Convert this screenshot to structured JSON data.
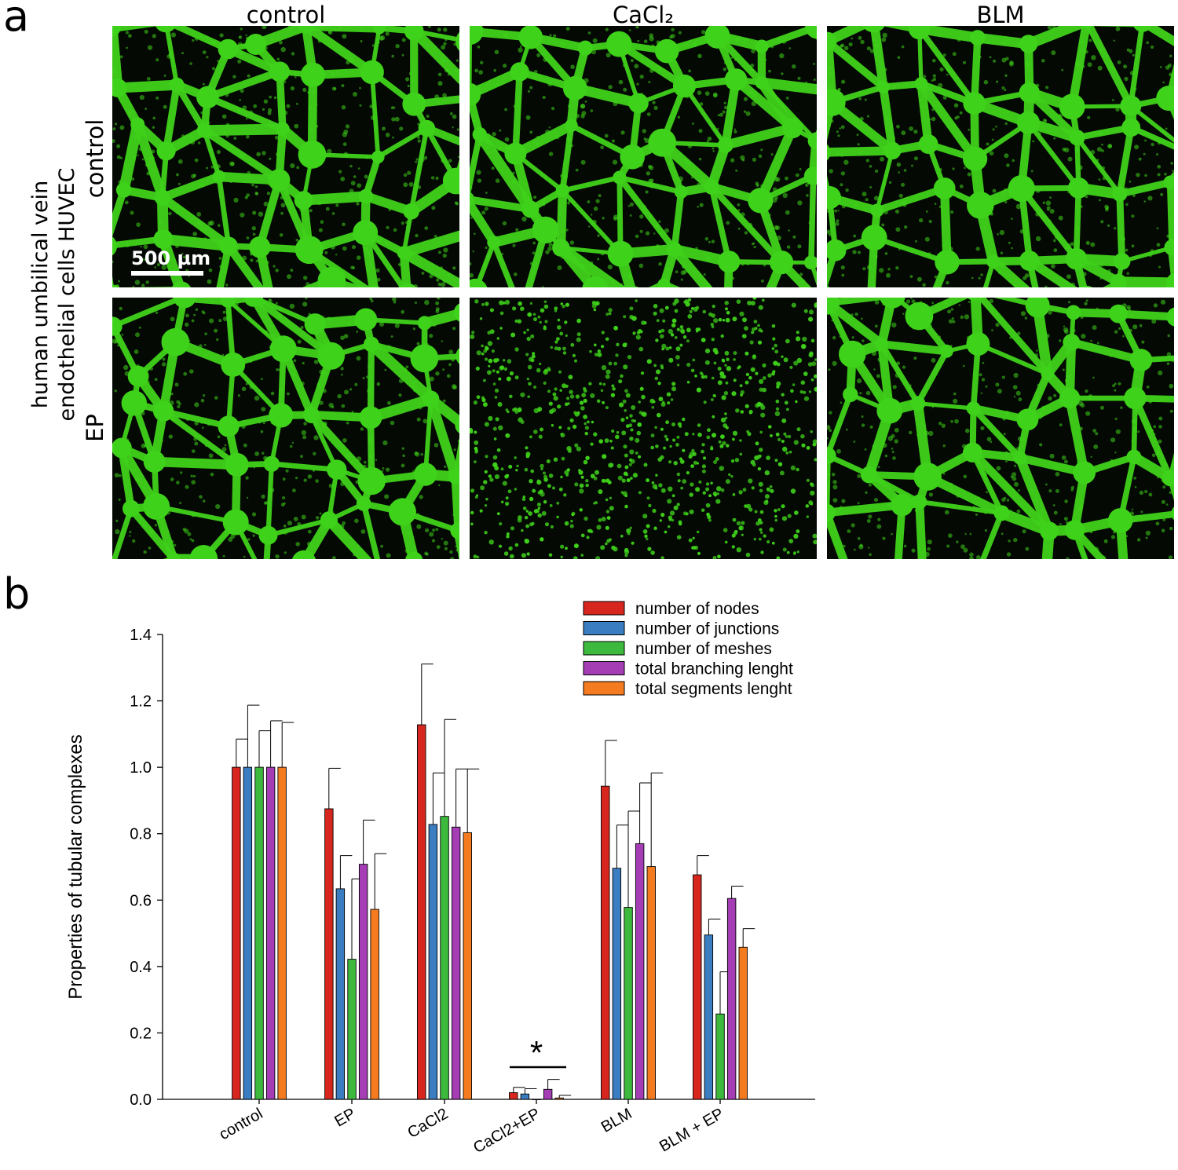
{
  "panel_a": {
    "letter": "a",
    "column_titles": [
      "control",
      "CaCl₂",
      "BLM"
    ],
    "row_labels": [
      "control",
      "EP"
    ],
    "side_label_lines": [
      "human umbilical vein",
      "endothelial cells HUVEC"
    ],
    "scale_bar": "500 µm",
    "colors": {
      "cells": "#3fd21a",
      "background": "#040904"
    }
  },
  "panel_b": {
    "letter": "b",
    "significance_marker": "*"
  },
  "chart_data": {
    "type": "bar",
    "title": "",
    "xlabel": "",
    "ylabel": "Properties of tubular complexes",
    "ylim": [
      0,
      1.4
    ],
    "yticks": [
      "0.0",
      "0.2",
      "0.4",
      "0.6",
      "0.8",
      "1.0",
      "1.2",
      "1.4"
    ],
    "categories": [
      "control",
      "EP",
      "CaCl2",
      "CaCl2+EP",
      "BLM",
      "BLM + EP"
    ],
    "legend_position": "top-right",
    "series": [
      {
        "name": "number of nodes",
        "color": "#d7261e",
        "values": [
          1.0,
          0.875,
          1.128,
          0.02,
          0.943,
          0.676
        ],
        "errors": [
          0.085,
          0.122,
          0.183,
          0.016,
          0.138,
          0.058
        ]
      },
      {
        "name": "number of junctions",
        "color": "#3a7dc1",
        "values": [
          1.0,
          0.634,
          0.828,
          0.016,
          0.696,
          0.495
        ],
        "errors": [
          0.187,
          0.1,
          0.155,
          0.016,
          0.13,
          0.048
        ]
      },
      {
        "name": "number of meshes",
        "color": "#3db93d",
        "values": [
          1.0,
          0.422,
          0.852,
          0.0,
          0.578,
          0.257
        ],
        "errors": [
          0.11,
          0.242,
          0.292,
          0.0,
          0.29,
          0.127
        ]
      },
      {
        "name": "total branching lenght",
        "color": "#a53db5",
        "values": [
          1.0,
          0.708,
          0.82,
          0.03,
          0.77,
          0.605
        ],
        "errors": [
          0.14,
          0.133,
          0.175,
          0.03,
          0.183,
          0.037
        ]
      },
      {
        "name": "total segments lenght",
        "color": "#f47b20",
        "values": [
          1.0,
          0.572,
          0.803,
          0.004,
          0.701,
          0.458
        ],
        "errors": [
          0.135,
          0.168,
          0.192,
          0.008,
          0.282,
          0.056
        ]
      }
    ]
  }
}
